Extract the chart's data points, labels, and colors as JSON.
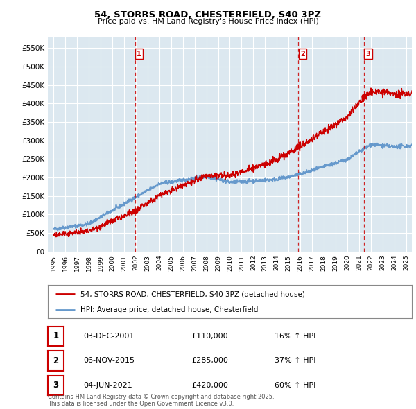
{
  "title": "54, STORRS ROAD, CHESTERFIELD, S40 3PZ",
  "subtitle": "Price paid vs. HM Land Registry's House Price Index (HPI)",
  "property_label": "54, STORRS ROAD, CHESTERFIELD, S40 3PZ (detached house)",
  "hpi_label": "HPI: Average price, detached house, Chesterfield",
  "property_color": "#cc0000",
  "hpi_color": "#6699cc",
  "background_color": "#dce8f0",
  "sale_points": [
    {
      "date_num": 2001.92,
      "price": 110000,
      "label": "1",
      "date_str": "03-DEC-2001",
      "pct": "16% ↑ HPI"
    },
    {
      "date_num": 2015.84,
      "price": 285000,
      "label": "2",
      "date_str": "06-NOV-2015",
      "pct": "37% ↑ HPI"
    },
    {
      "date_num": 2021.42,
      "price": 420000,
      "label": "3",
      "date_str": "04-JUN-2021",
      "pct": "60% ↑ HPI"
    }
  ],
  "ylim": [
    0,
    580000
  ],
  "yticks": [
    0,
    50000,
    100000,
    150000,
    200000,
    250000,
    300000,
    350000,
    400000,
    450000,
    500000,
    550000
  ],
  "xlim": [
    1994.5,
    2025.5
  ],
  "footer": "Contains HM Land Registry data © Crown copyright and database right 2025.\nThis data is licensed under the Open Government Licence v3.0.",
  "table_data": [
    [
      "1",
      "03-DEC-2001",
      "£110,000",
      "16% ↑ HPI"
    ],
    [
      "2",
      "06-NOV-2015",
      "£285,000",
      "37% ↑ HPI"
    ],
    [
      "3",
      "04-JUN-2021",
      "£420,000",
      "60% ↑ HPI"
    ]
  ]
}
